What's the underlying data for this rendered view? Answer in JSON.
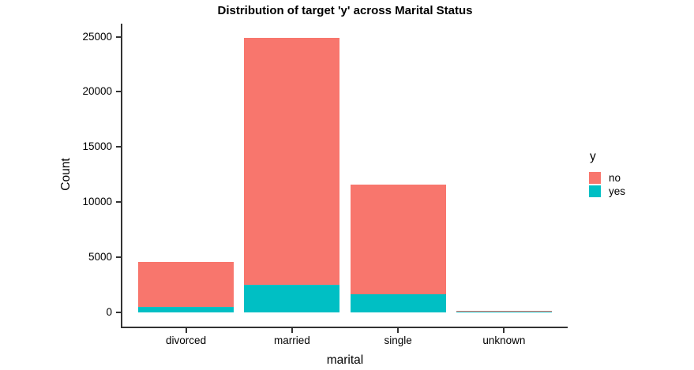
{
  "chart_data": {
    "type": "bar",
    "stacked": true,
    "title": "Distribution of target 'y' across Marital Status",
    "xlabel": "marital",
    "ylabel": "Count",
    "categories": [
      "divorced",
      "married",
      "single",
      "unknown"
    ],
    "series": [
      {
        "name": "no",
        "color": "#F8766D",
        "values": [
          4130,
          22400,
          9950,
          70
        ]
      },
      {
        "name": "yes",
        "color": "#00BFC4",
        "values": [
          480,
          2530,
          1620,
          10
        ]
      }
    ],
    "stack_totals": [
      4610,
      24930,
      11570,
      80
    ],
    "ylim": [
      0,
      25000
    ],
    "yticks": [
      0,
      5000,
      10000,
      15000,
      20000,
      25000
    ],
    "legend_title": "y",
    "legend_position": "right",
    "grid": false,
    "axis_color": "#333333",
    "background": "#FFFFFF"
  }
}
